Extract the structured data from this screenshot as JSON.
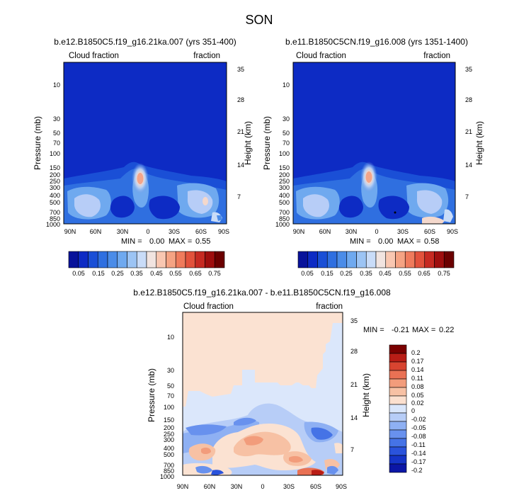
{
  "suptitle": "SON",
  "colors": {
    "diverging_fill_scale": [
      "#ffffff",
      "#f9dcc8",
      "#f5b59a",
      "#ec8a6d",
      "#d84a3a",
      "#b81c1c",
      "#7a0000"
    ],
    "cloud_colorbar": [
      "#08129a",
      "#0d2bc4",
      "#1a4fd6",
      "#2f6fe0",
      "#4b8ce8",
      "#6fa9ef",
      "#9cc4f4",
      "#c9dcf8",
      "#f1e4e0",
      "#f9c7b1",
      "#f5a383",
      "#ef7b5c",
      "#e2523c",
      "#c62a22",
      "#9e0e0e",
      "#6b0000"
    ],
    "diff_colorbar": [
      "#0b16a6",
      "#1534c8",
      "#2a53dc",
      "#4573e6",
      "#6891ee",
      "#8eb0f3",
      "#b7cdf7",
      "#d9e6fb",
      "#fbe0cf",
      "#f7c1a4",
      "#f29c7b",
      "#e97154",
      "#d84430",
      "#b91d16",
      "#7a0000"
    ]
  },
  "chart_data": [
    {
      "type": "heatmap",
      "title": "b.e12.B1850C5.f19_g16.21ka.007 (yrs 351-400)",
      "left_label": "Cloud fraction",
      "right_label": "fraction",
      "xlabel": "",
      "ylabel": "Pressure (mb)",
      "y2label": "Height (km)",
      "x_ticks": [
        "90N",
        "60N",
        "30N",
        "0",
        "30S",
        "60S",
        "90S"
      ],
      "y_ticks": [
        "10",
        "30",
        "50",
        "70",
        "100",
        "150",
        "200",
        "250",
        "300",
        "400",
        "500",
        "700",
        "850",
        "1000"
      ],
      "y2_ticks": [
        "35",
        "28",
        "21",
        "14",
        "7"
      ],
      "stats": {
        "min_label": "MIN =",
        "min": "0.00",
        "max_label": "MAX =",
        "max": "0.55"
      },
      "colorbar_labels": [
        "0.05",
        "0.15",
        "0.25",
        "0.35",
        "0.45",
        "0.55",
        "0.65",
        "0.75"
      ]
    },
    {
      "type": "heatmap",
      "title": "b.e11.B1850C5CN.f19_g16.008 (yrs 1351-1400)",
      "left_label": "Cloud fraction",
      "right_label": "fraction",
      "xlabel": "",
      "ylabel": "Pressure (mb)",
      "y2label": "Height (km)",
      "x_ticks": [
        "90N",
        "60N",
        "30N",
        "0",
        "30S",
        "60S",
        "90S"
      ],
      "y_ticks": [
        "10",
        "30",
        "50",
        "70",
        "100",
        "150",
        "200",
        "250",
        "300",
        "400",
        "500",
        "700",
        "850",
        "1000"
      ],
      "y2_ticks": [
        "35",
        "28",
        "21",
        "14",
        "7"
      ],
      "stats": {
        "min_label": "MIN =",
        "min": "0.00",
        "max_label": "MAX =",
        "max": "0.58"
      },
      "colorbar_labels": [
        "0.05",
        "0.15",
        "0.25",
        "0.35",
        "0.45",
        "0.55",
        "0.65",
        "0.75"
      ]
    },
    {
      "type": "heatmap",
      "title": "b.e12.B1850C5.f19_g16.21ka.007 - b.e11.B1850C5CN.f19_g16.008",
      "left_label": "Cloud fraction",
      "right_label": "fraction",
      "xlabel": "",
      "ylabel": "Pressure (mb)",
      "y2label": "Height (km)",
      "x_ticks": [
        "90N",
        "60N",
        "30N",
        "0",
        "30S",
        "60S",
        "90S"
      ],
      "y_ticks": [
        "10",
        "30",
        "50",
        "70",
        "100",
        "150",
        "200",
        "250",
        "300",
        "400",
        "500",
        "700",
        "850",
        "1000"
      ],
      "y2_ticks": [
        "35",
        "28",
        "21",
        "14",
        "7"
      ],
      "stats": {
        "min_label": "MIN =",
        "min": "-0.21",
        "max_label": "MAX =",
        "max": "0.22"
      },
      "colorbar_labels": [
        "0.2",
        "0.17",
        "0.14",
        "0.11",
        "0.08",
        "0.05",
        "0.02",
        "0",
        "-0.02",
        "-0.05",
        "-0.08",
        "-0.11",
        "-0.14",
        "-0.17",
        "-0.2"
      ]
    }
  ]
}
